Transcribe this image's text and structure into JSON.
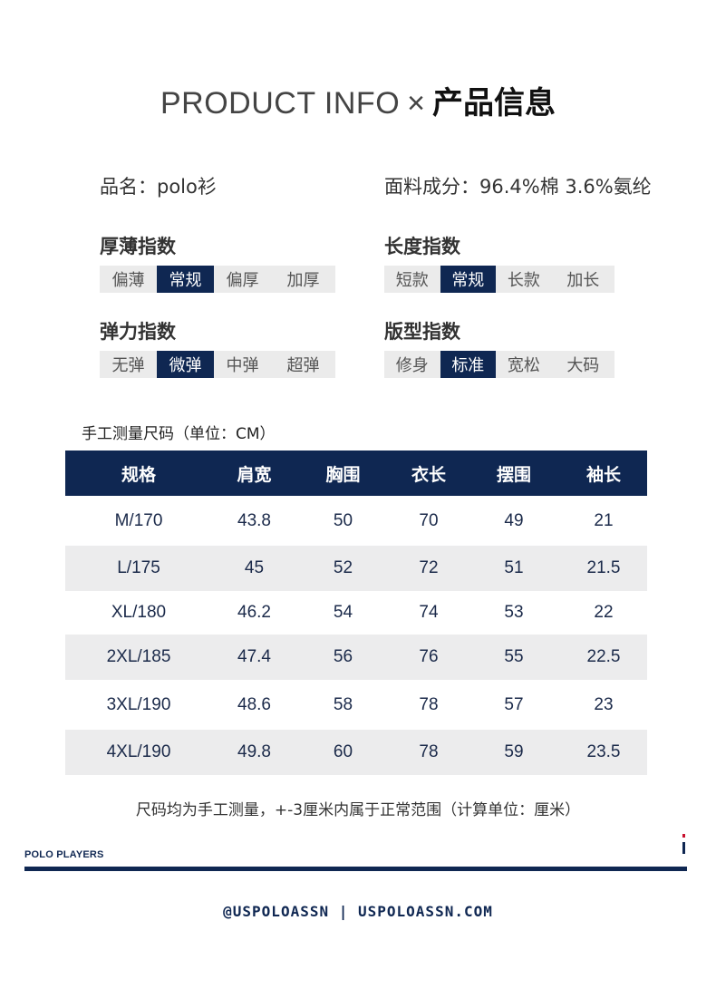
{
  "title": {
    "en": "PRODUCT INFO",
    "sep": "×",
    "cn": "产品信息"
  },
  "specs": {
    "name_label": "品名：",
    "name_value": "polo衫",
    "fabric_label": "面料成分：",
    "fabric_value": "96.4%棉 3.6%氨纶"
  },
  "indices": {
    "thickness": {
      "label": "厚薄指数",
      "options": [
        "偏薄",
        "常规",
        "偏厚",
        "加厚"
      ],
      "selected": 1
    },
    "length": {
      "label": "长度指数",
      "options": [
        "短款",
        "常规",
        "长款",
        "加长"
      ],
      "selected": 1
    },
    "elasticity": {
      "label": "弹力指数",
      "options": [
        "无弹",
        "微弹",
        "中弹",
        "超弹"
      ],
      "selected": 1
    },
    "fit": {
      "label": "版型指数",
      "options": [
        "修身",
        "标准",
        "宽松",
        "大码"
      ],
      "selected": 1
    }
  },
  "table": {
    "caption": "手工测量尺码（单位：CM）",
    "headers": [
      "规格",
      "肩宽",
      "胸围",
      "衣长",
      "摆围",
      "袖长"
    ],
    "rows": [
      [
        "M/170",
        "43.8",
        "50",
        "70",
        "49",
        "21"
      ],
      [
        "L/175",
        "45",
        "52",
        "72",
        "51",
        "21.5"
      ],
      [
        "XL/180",
        "46.2",
        "54",
        "74",
        "53",
        "22"
      ],
      [
        "2XL/185",
        "47.4",
        "56",
        "76",
        "55",
        "22.5"
      ],
      [
        "3XL/190",
        "48.6",
        "58",
        "78",
        "57",
        "23"
      ],
      [
        "4XL/190",
        "49.8",
        "60",
        "78",
        "59",
        "23.5"
      ]
    ]
  },
  "note": "尺码均为手工测量，+-3厘米内属于正常范围（计算单位：厘米）",
  "brand": "POLO PLAYERS",
  "footer": "@USPOLOASSN | USPOLOASSN.COM",
  "colors": {
    "navy": "#0f2752",
    "stripe_gray": "#ececed",
    "flag_red": "#c8102e",
    "flag_white": "#ffffff",
    "flag_blue": "#0f2752"
  }
}
